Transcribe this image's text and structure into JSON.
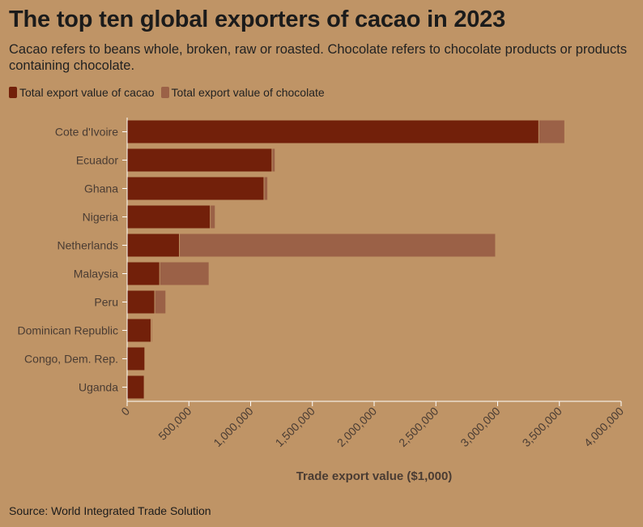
{
  "title": "The top ten global exporters of cacao in 2023",
  "subtitle": "Cacao refers to beans whole, broken, raw or roasted. Chocolate refers to chocolate products or products containing chocolate.",
  "source": "Source: World Integrated Trade Solution",
  "colors": {
    "background": "#bf9466",
    "cacao": "#72200a",
    "chocolate": "#9b6147",
    "axis": "#ffffff",
    "label": "#4a3c33"
  },
  "chart_data": {
    "type": "bar",
    "orientation": "horizontal",
    "stacked": true,
    "categories": [
      "Cote d'Ivoire",
      "Ecuador",
      "Ghana",
      "Nigeria",
      "Netherlands",
      "Malaysia",
      "Peru",
      "Dominican Republic",
      "Congo, Dem. Rep.",
      "Uganda"
    ],
    "series": [
      {
        "name": "Total export value of cacao",
        "values": [
          3330000,
          1170000,
          1105000,
          670000,
          420000,
          260000,
          220000,
          190000,
          140000,
          135000
        ]
      },
      {
        "name": "Total export value of chocolate",
        "values": [
          210000,
          25000,
          30000,
          40000,
          2560000,
          400000,
          90000,
          10000,
          5000,
          5000
        ]
      }
    ],
    "xlabel": "Trade export value ($1,000)",
    "xlim": [
      0,
      4000000
    ],
    "xticks": [
      "0",
      "500,000",
      "1,000,000",
      "1,500,000",
      "2,000,000",
      "2,500,000",
      "3,000,000",
      "3,500,000",
      "4,000,000"
    ],
    "legend_position": "top-left",
    "grid": false
  }
}
